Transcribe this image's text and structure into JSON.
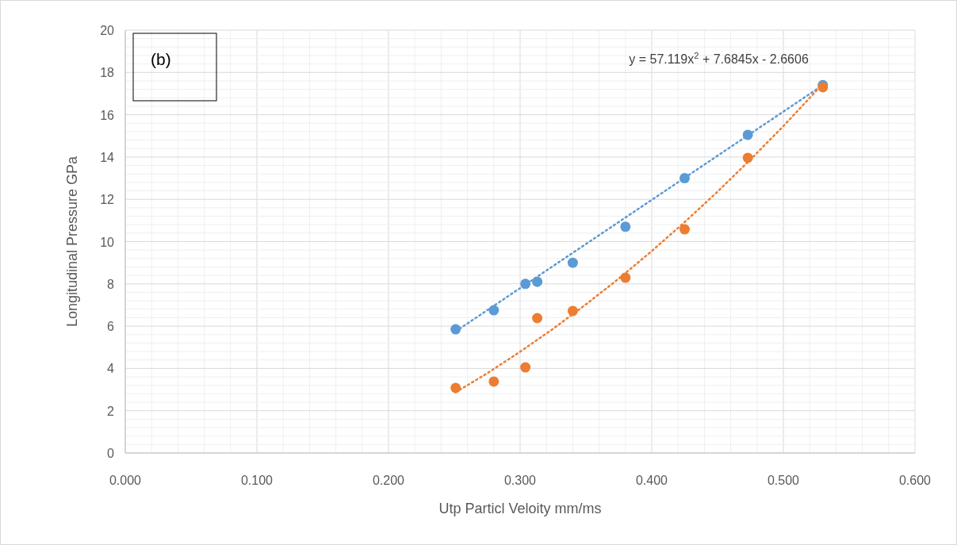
{
  "chart_data": {
    "type": "scatter",
    "xlabel": "Utp Particl Veloity mm/ms",
    "ylabel": "Longitudinal Pressure  GPa",
    "xlim": [
      0,
      0.6
    ],
    "xticks": [
      {
        "value": 0,
        "label": "0.000"
      },
      {
        "value": 0.1,
        "label": "0.100"
      },
      {
        "value": 0.2,
        "label": "0.200"
      },
      {
        "value": 0.3,
        "label": "0.300"
      },
      {
        "value": 0.4,
        "label": "0.400"
      },
      {
        "value": 0.5,
        "label": "0.500"
      },
      {
        "value": 0.6,
        "label": "0.600"
      }
    ],
    "ylim": [
      0,
      20
    ],
    "yticks": [
      0,
      2,
      4,
      6,
      8,
      10,
      12,
      14,
      16,
      18,
      20
    ],
    "grid": true,
    "marker": "circle",
    "series": [
      {
        "type": "line",
        "marker": "none",
        "color": "#5b9bd5",
        "line_style": "dotted",
        "x": [
          0.251,
          0.53
        ],
        "values": [
          5.75,
          17.4
        ]
      },
      {
        "type": "line",
        "marker": "none",
        "color": "#ed7d31",
        "line_style": "dotted",
        "x": [
          0.251,
          0.275,
          0.3,
          0.325,
          0.35,
          0.375,
          0.4,
          0.425,
          0.45,
          0.475,
          0.5,
          0.53
        ],
        "values": [
          2.87,
          3.77,
          4.79,
          5.87,
          7.03,
          8.25,
          9.55,
          10.92,
          12.36,
          13.88,
          15.46,
          17.46
        ]
      },
      {
        "color": "#5b9bd5",
        "x": [
          0.251,
          0.28,
          0.304,
          0.313,
          0.34,
          0.38,
          0.425,
          0.473,
          0.53
        ],
        "values": [
          5.85,
          6.75,
          8.0,
          8.1,
          9.0,
          10.7,
          13.0,
          15.05,
          17.4
        ]
      },
      {
        "color": "#ed7d31",
        "x": [
          0.251,
          0.28,
          0.304,
          0.313,
          0.34,
          0.38,
          0.425,
          0.473,
          0.53
        ],
        "values": [
          3.08,
          3.38,
          4.05,
          6.38,
          6.72,
          8.29,
          10.58,
          13.96,
          17.3
        ]
      }
    ],
    "annotations": [
      "(b)",
      {
        "text": "y = 57.119x$^{2}$ + 7.6845x - 2.6606",
        "x": 0.53,
        "y": 17.46
      }
    ]
  }
}
